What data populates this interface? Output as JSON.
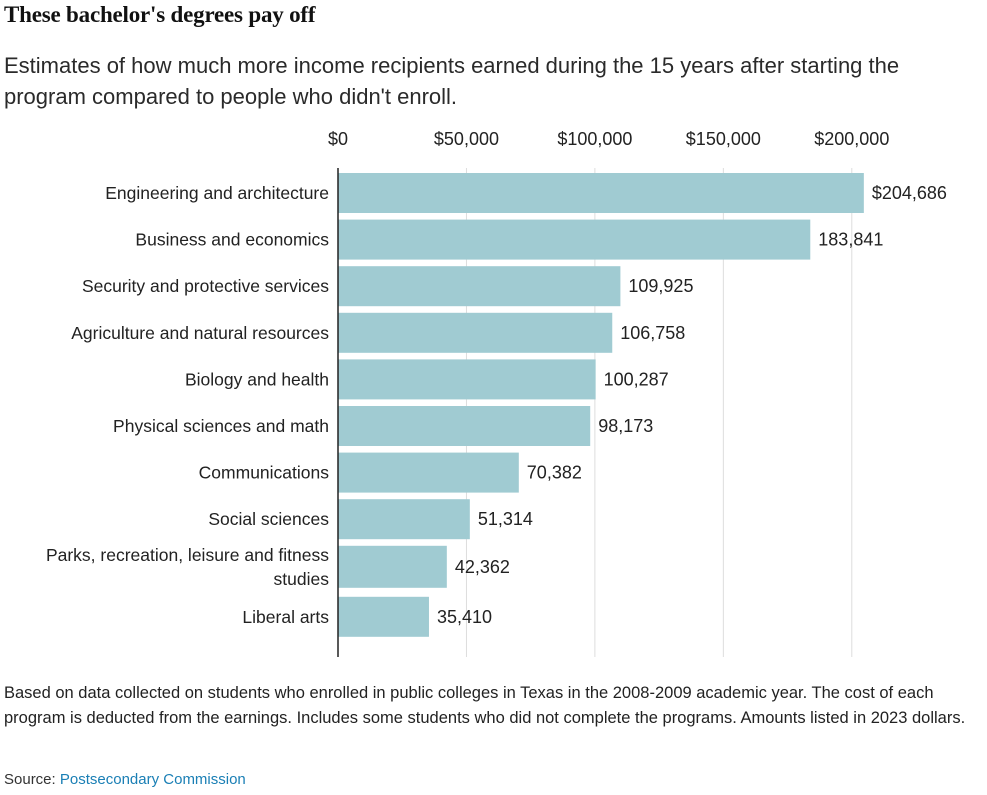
{
  "title": "These bachelor's degrees pay off",
  "subtitle": "Estimates of how much more income recipients earned during the 15 years after starting the program compared to people who didn't enroll.",
  "note": "Based on data collected on students who enrolled in public colleges in Texas in the 2008-2009 academic year. The cost of each program is deducted from the earnings. Includes some students who did not complete the programs. Amounts listed in 2023 dollars.",
  "source": {
    "label": "Source:",
    "link_text": "Postsecondary Commission"
  },
  "colors": {
    "bar": "#a0cbd2",
    "grid": "#dddddd",
    "axis": "#222222",
    "link": "#1a7fb5"
  },
  "chart_data": {
    "type": "bar",
    "orientation": "horizontal",
    "categories": [
      "Engineering and architecture",
      "Business and economics",
      "Security and protective services",
      "Agriculture and natural resources",
      "Biology and health",
      "Physical sciences and math",
      "Communications",
      "Social sciences",
      "Parks, recreation, leisure and fitness studies",
      "Liberal arts"
    ],
    "category_lines": [
      [
        "Engineering and architecture"
      ],
      [
        "Business and economics"
      ],
      [
        "Security and protective services"
      ],
      [
        "Agriculture and natural resources"
      ],
      [
        "Biology and health"
      ],
      [
        "Physical sciences and math"
      ],
      [
        "Communications"
      ],
      [
        "Social sciences"
      ],
      [
        "Parks, recreation, leisure and fitness",
        "studies"
      ],
      [
        "Liberal arts"
      ]
    ],
    "values": [
      204686,
      183841,
      109925,
      106758,
      100287,
      98173,
      70382,
      51314,
      42362,
      35410
    ],
    "value_labels": [
      "$204,686",
      "183,841",
      "109,925",
      "106,758",
      "100,287",
      "98,173",
      "70,382",
      "51,314",
      "42,362",
      "35,410"
    ],
    "xlim": [
      0,
      210000
    ],
    "xticks": [
      0,
      50000,
      100000,
      150000,
      200000
    ],
    "xtick_labels": [
      "$0",
      "$50,000",
      "$100,000",
      "$150,000",
      "$200,000"
    ],
    "xaxis_position": "top",
    "grid": true
  }
}
